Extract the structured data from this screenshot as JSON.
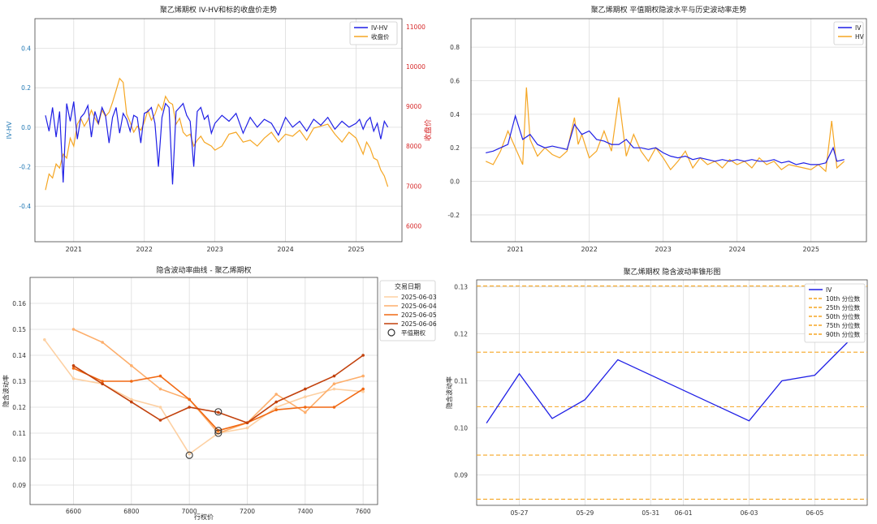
{
  "colors": {
    "iv": "#1f1fe6",
    "hv": "#f5a623",
    "red_axis": "#d62728",
    "blue_axis": "#1f77b4",
    "grid": "#dcdcdc",
    "pct": "#f5a623"
  },
  "chart_data": [
    {
      "type": "line",
      "title": "聚乙烯期权 IV-HV和标的收盘价走势",
      "ylabel_left": "IV-HV",
      "ylabel_right": "收盘价",
      "x_ticks": [
        "2021",
        "2022",
        "2023",
        "2024",
        "2025"
      ],
      "y_left_ticks": [
        "-0.4",
        "-0.2",
        "0.0",
        "0.2",
        "0.4"
      ],
      "y_right_ticks": [
        "6000",
        "7000",
        "8000",
        "9000",
        "10000",
        "11000"
      ],
      "ylim_left": [
        -0.58,
        0.55
      ],
      "ylim_right": [
        5600,
        11200
      ],
      "xlim": [
        2020.45,
        2025.65
      ],
      "legend": [
        "IV-HV",
        "收盘价"
      ],
      "legend_position": "top-right",
      "series": [
        {
          "name": "IV-HV",
          "x": [
            2020.6,
            2020.65,
            2020.7,
            2020.75,
            2020.8,
            2020.85,
            2020.9,
            2020.95,
            2021.0,
            2021.05,
            2021.1,
            2021.15,
            2021.2,
            2021.25,
            2021.3,
            2021.35,
            2021.4,
            2021.45,
            2021.5,
            2021.55,
            2021.6,
            2021.65,
            2021.7,
            2021.75,
            2021.8,
            2021.85,
            2021.9,
            2021.95,
            2022.0,
            2022.05,
            2022.1,
            2022.15,
            2022.2,
            2022.25,
            2022.3,
            2022.35,
            2022.4,
            2022.45,
            2022.5,
            2022.55,
            2022.6,
            2022.65,
            2022.7,
            2022.75,
            2022.8,
            2022.85,
            2022.9,
            2022.95,
            2023.0,
            2023.1,
            2023.2,
            2023.3,
            2023.4,
            2023.5,
            2023.6,
            2023.7,
            2023.8,
            2023.9,
            2024.0,
            2024.1,
            2024.2,
            2024.3,
            2024.4,
            2024.5,
            2024.6,
            2024.7,
            2024.8,
            2024.9,
            2025.0,
            2025.05,
            2025.1,
            2025.15,
            2025.2,
            2025.25,
            2025.3,
            2025.35,
            2025.4,
            2025.45
          ],
          "values": [
            0.06,
            -0.02,
            0.1,
            -0.05,
            0.08,
            -0.28,
            0.12,
            0.03,
            0.13,
            -0.06,
            0.05,
            0.07,
            0.11,
            -0.05,
            0.08,
            0.02,
            0.1,
            0.06,
            -0.08,
            0.05,
            0.1,
            -0.03,
            0.07,
            0.04,
            -0.02,
            0.06,
            0.05,
            -0.08,
            0.07,
            0.08,
            0.1,
            0.02,
            -0.2,
            0.05,
            0.12,
            0.1,
            -0.29,
            0.08,
            0.1,
            0.12,
            0.06,
            0.03,
            -0.2,
            0.08,
            0.1,
            0.04,
            0.06,
            -0.03,
            0.02,
            0.06,
            0.03,
            0.07,
            -0.03,
            0.05,
            0.0,
            0.04,
            0.02,
            -0.04,
            0.05,
            0.0,
            0.03,
            -0.02,
            0.04,
            0.01,
            0.05,
            -0.01,
            0.03,
            0.0,
            0.02,
            0.04,
            -0.01,
            0.03,
            0.05,
            -0.02,
            0.02,
            -0.06,
            0.03,
            0.0
          ]
        },
        {
          "name": "收盘价",
          "x": [
            2020.6,
            2020.65,
            2020.7,
            2020.75,
            2020.8,
            2020.85,
            2020.9,
            2020.95,
            2021.0,
            2021.05,
            2021.1,
            2021.15,
            2021.2,
            2021.25,
            2021.3,
            2021.35,
            2021.4,
            2021.45,
            2021.5,
            2021.55,
            2021.6,
            2021.65,
            2021.7,
            2021.75,
            2021.8,
            2021.85,
            2021.9,
            2021.95,
            2022.0,
            2022.05,
            2022.1,
            2022.15,
            2022.2,
            2022.25,
            2022.3,
            2022.35,
            2022.4,
            2022.45,
            2022.5,
            2022.55,
            2022.6,
            2022.65,
            2022.7,
            2022.75,
            2022.8,
            2022.85,
            2022.9,
            2022.95,
            2023.0,
            2023.1,
            2023.2,
            2023.3,
            2023.4,
            2023.5,
            2023.6,
            2023.7,
            2023.8,
            2023.9,
            2024.0,
            2024.1,
            2024.2,
            2024.3,
            2024.4,
            2024.5,
            2024.6,
            2024.7,
            2024.8,
            2024.9,
            2025.0,
            2025.05,
            2025.1,
            2025.15,
            2025.2,
            2025.25,
            2025.3,
            2025.35,
            2025.4,
            2025.45
          ],
          "values": [
            6900,
            7300,
            7200,
            7550,
            7450,
            7800,
            7700,
            8200,
            8000,
            8550,
            8700,
            8500,
            8650,
            8900,
            8700,
            8550,
            8900,
            8750,
            8850,
            9100,
            9400,
            9700,
            9600,
            8800,
            8600,
            8350,
            8500,
            8400,
            8600,
            8900,
            8650,
            8800,
            9050,
            8900,
            9250,
            9100,
            9050,
            8550,
            8700,
            8350,
            8250,
            8300,
            8000,
            8150,
            8250,
            8100,
            8050,
            8000,
            7900,
            8000,
            8300,
            8350,
            8100,
            8150,
            8000,
            8200,
            8350,
            8100,
            8300,
            8250,
            8400,
            8150,
            8450,
            8500,
            8550,
            8300,
            8100,
            8350,
            8200,
            8000,
            7800,
            8100,
            7950,
            7700,
            7650,
            7400,
            7250,
            6980
          ]
        }
      ]
    },
    {
      "type": "line",
      "title": "聚乙烯期权 平值期权隐波水平与历史波动率走势",
      "x_ticks": [
        "2021",
        "2022",
        "2023",
        "2024",
        "2025"
      ],
      "y_ticks": [
        "-0.2",
        "0.0",
        "0.2",
        "0.4",
        "0.6",
        "0.8"
      ],
      "ylim": [
        -0.36,
        0.97
      ],
      "xlim": [
        2020.4,
        2025.75
      ],
      "legend": [
        "IV",
        "HV"
      ],
      "legend_position": "top-right",
      "series": [
        {
          "name": "IV",
          "x": [
            2020.6,
            2020.7,
            2020.8,
            2020.9,
            2021.0,
            2021.1,
            2021.2,
            2021.3,
            2021.4,
            2021.5,
            2021.6,
            2021.7,
            2021.8,
            2021.9,
            2022.0,
            2022.1,
            2022.2,
            2022.3,
            2022.4,
            2022.5,
            2022.6,
            2022.7,
            2022.8,
            2022.9,
            2023.0,
            2023.1,
            2023.2,
            2023.3,
            2023.4,
            2023.5,
            2023.6,
            2023.7,
            2023.8,
            2023.9,
            2024.0,
            2024.1,
            2024.2,
            2024.3,
            2024.4,
            2024.5,
            2024.6,
            2024.7,
            2024.8,
            2024.9,
            2025.0,
            2025.1,
            2025.2,
            2025.3,
            2025.35,
            2025.45
          ],
          "values": [
            0.17,
            0.18,
            0.2,
            0.22,
            0.39,
            0.25,
            0.28,
            0.22,
            0.2,
            0.21,
            0.2,
            0.19,
            0.34,
            0.28,
            0.3,
            0.25,
            0.24,
            0.22,
            0.22,
            0.25,
            0.2,
            0.2,
            0.19,
            0.2,
            0.17,
            0.15,
            0.14,
            0.15,
            0.13,
            0.14,
            0.13,
            0.12,
            0.13,
            0.12,
            0.13,
            0.12,
            0.13,
            0.12,
            0.12,
            0.13,
            0.11,
            0.12,
            0.1,
            0.11,
            0.1,
            0.1,
            0.11,
            0.2,
            0.12,
            0.13
          ]
        },
        {
          "name": "HV",
          "x": [
            2020.6,
            2020.7,
            2020.8,
            2020.9,
            2021.0,
            2021.1,
            2021.15,
            2021.2,
            2021.3,
            2021.4,
            2021.5,
            2021.6,
            2021.7,
            2021.8,
            2021.85,
            2021.9,
            2022.0,
            2022.1,
            2022.2,
            2022.3,
            2022.4,
            2022.5,
            2022.6,
            2022.7,
            2022.8,
            2022.9,
            2023.0,
            2023.1,
            2023.2,
            2023.3,
            2023.4,
            2023.5,
            2023.6,
            2023.7,
            2023.8,
            2023.9,
            2024.0,
            2024.1,
            2024.2,
            2024.3,
            2024.4,
            2024.5,
            2024.6,
            2024.7,
            2024.8,
            2024.9,
            2025.0,
            2025.1,
            2025.2,
            2025.28,
            2025.35,
            2025.45
          ],
          "values": [
            0.12,
            0.1,
            0.18,
            0.3,
            0.2,
            0.1,
            0.56,
            0.25,
            0.15,
            0.2,
            0.16,
            0.14,
            0.18,
            0.38,
            0.22,
            0.28,
            0.14,
            0.18,
            0.3,
            0.18,
            0.5,
            0.15,
            0.28,
            0.18,
            0.12,
            0.2,
            0.14,
            0.07,
            0.12,
            0.18,
            0.08,
            0.14,
            0.1,
            0.12,
            0.08,
            0.13,
            0.1,
            0.12,
            0.08,
            0.14,
            0.1,
            0.12,
            0.07,
            0.1,
            0.09,
            0.08,
            0.07,
            0.1,
            0.06,
            0.36,
            0.08,
            0.12
          ]
        }
      ]
    },
    {
      "type": "line",
      "title": "隐含波动率曲线 - 聚乙烯期权",
      "xlabel": "行权价",
      "ylabel": "隐含波动率",
      "x_ticks": [
        "6600",
        "6800",
        "7000",
        "7200",
        "7400",
        "7600"
      ],
      "y_ticks": [
        "0.09",
        "0.10",
        "0.11",
        "0.12",
        "0.13",
        "0.14",
        "0.15",
        "0.16"
      ],
      "xlim": [
        6450,
        7650
      ],
      "ylim": [
        0.0825,
        0.17
      ],
      "legend_title": "交易日期",
      "legend": [
        "2025-06-03",
        "2025-06-04",
        "2025-06-05",
        "2025-06-06",
        "平值期权"
      ],
      "legend_position": "outside-right",
      "series": [
        {
          "name": "2025-06-03",
          "color": "#fdd0a2",
          "x": [
            6500,
            6600,
            6700,
            6800,
            6900,
            7000,
            7100,
            7200,
            7300,
            7400,
            7500,
            7600
          ],
          "values": [
            0.146,
            0.131,
            0.129,
            0.123,
            0.12,
            0.102,
            0.11,
            0.112,
            0.12,
            0.124,
            0.127,
            0.126
          ]
        },
        {
          "name": "2025-06-04",
          "color": "#fdae6b",
          "x": [
            6600,
            6700,
            6800,
            6900,
            7000,
            7100,
            7200,
            7300,
            7400,
            7500,
            7600
          ],
          "values": [
            0.15,
            0.145,
            0.136,
            0.127,
            0.123,
            0.11,
            0.114,
            0.125,
            0.118,
            0.129,
            0.132
          ]
        },
        {
          "name": "2025-06-05",
          "color": "#f16913",
          "x": [
            6600,
            6700,
            6800,
            6900,
            7000,
            7100,
            7200,
            7300,
            7400,
            7500,
            7600
          ],
          "values": [
            0.135,
            0.13,
            0.13,
            0.132,
            0.123,
            0.111,
            0.114,
            0.119,
            0.12,
            0.12,
            0.127
          ]
        },
        {
          "name": "2025-06-06",
          "color": "#c2410c",
          "x": [
            6600,
            6700,
            6800,
            6900,
            7000,
            7100,
            7200,
            7300,
            7400,
            7500,
            7600
          ],
          "values": [
            0.136,
            0.129,
            0.122,
            0.115,
            0.12,
            0.118,
            0.114,
            0.122,
            0.127,
            0.132,
            0.14
          ]
        }
      ],
      "atm_points": [
        {
          "x": 7000,
          "y": 0.1015
        },
        {
          "x": 7100,
          "y": 0.11
        },
        {
          "x": 7100,
          "y": 0.111
        },
        {
          "x": 7100,
          "y": 0.1182
        }
      ]
    },
    {
      "type": "line",
      "title": "聚乙烯期权 隐含波动率锥形图",
      "ylabel": "隐含波动率",
      "x_ticks": [
        "05-27",
        "05-29",
        "05-31",
        "06-01",
        "06-03",
        "06-05"
      ],
      "x_tick_days": [
        1,
        3,
        5,
        6,
        8,
        10
      ],
      "y_ticks": [
        "0.09",
        "0.10",
        "0.11",
        "0.12",
        "0.13"
      ],
      "ylim": [
        0.0835,
        0.1315
      ],
      "xlim": [
        -0.3,
        11.6
      ],
      "legend": [
        "IV",
        "10th 分位数",
        "25th 分位数",
        "50th 分位数",
        "75th 分位数",
        "90th 分位数"
      ],
      "legend_position": "top-right",
      "series": [
        {
          "name": "IV",
          "x": [
            0,
            1,
            2,
            3,
            4,
            8,
            9,
            10,
            11
          ],
          "values": [
            0.101,
            0.1115,
            0.102,
            0.106,
            0.1145,
            0.1015,
            0.11,
            0.1112,
            0.1182
          ]
        }
      ],
      "percentiles": [
        {
          "name": "10th 分位数",
          "value": 0.0848
        },
        {
          "name": "25th 分位数",
          "value": 0.0942
        },
        {
          "name": "50th 分位数",
          "value": 0.1045
        },
        {
          "name": "75th 分位数",
          "value": 0.1161
        },
        {
          "name": "90th 分位数",
          "value": 0.1302
        }
      ]
    }
  ]
}
